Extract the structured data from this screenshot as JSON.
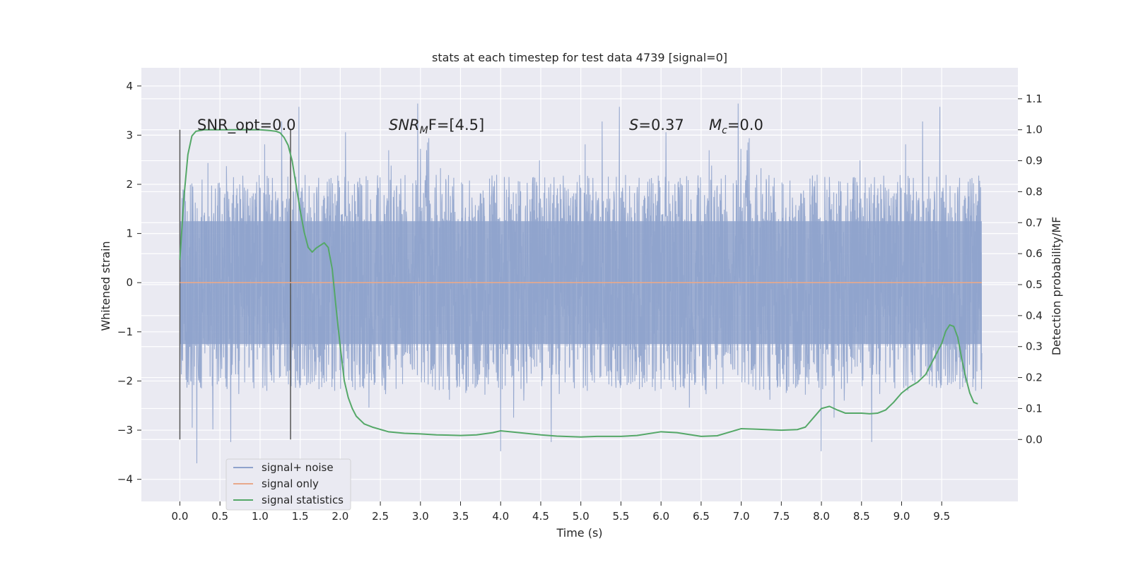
{
  "chart_data": {
    "type": "line",
    "title": "stats at each timestep for test data 4739 [signal=0]",
    "xlabel": "Time (s)",
    "ylabel": "Whitened strain",
    "ylabel_right": "Detection probability/MF",
    "xlim": [
      -0.48,
      10.45
    ],
    "ylim": [
      -4.45,
      4.37
    ],
    "ylim_right": [
      -0.2,
      1.2
    ],
    "xticks": [
      "0.0",
      "0.5",
      "1.0",
      "1.5",
      "2.0",
      "2.5",
      "3.0",
      "3.5",
      "4.0",
      "4.5",
      "5.0",
      "5.5",
      "6.0",
      "6.5",
      "7.0",
      "7.5",
      "8.0",
      "8.5",
      "9.0",
      "9.5"
    ],
    "yticks": [
      "−4",
      "−3",
      "−2",
      "−1",
      "0",
      "1",
      "2",
      "3",
      "4"
    ],
    "yticks_right": [
      "0.0",
      "0.1",
      "0.2",
      "0.3",
      "0.4",
      "0.5",
      "0.6",
      "0.7",
      "0.8",
      "0.9",
      "1.0",
      "1.1"
    ],
    "grid": true,
    "legend_position": "lower-left",
    "annotations": {
      "snr_opt": "SNR_opt=0.0",
      "snr_mf_italic": "SNR",
      "snr_mf_sub": "M",
      "snr_mf_rest": "F=[4.5]",
      "s_italic": "S",
      "s_rest": "=0.37",
      "mc_italic": "M",
      "mc_sub": "c",
      "mc_rest": "=0.0"
    },
    "vertical_markers_x": [
      0.0,
      1.38
    ],
    "series": [
      {
        "name": "signal+ noise",
        "color": "#8fa3cc",
        "axis": "left",
        "noise": {
          "t_start": 0.0,
          "t_end": 10.0,
          "core_amplitude": 1.25,
          "typical_peak": 2.2,
          "max_peak": 3.95,
          "min_peak": -3.8
        }
      },
      {
        "name": "signal only",
        "color": "#e8a98b",
        "axis": "left",
        "x": [
          0.0,
          10.0
        ],
        "y": [
          0.0,
          0.0
        ]
      },
      {
        "name": "signal statistics",
        "color": "#55a868",
        "axis": "right",
        "x": [
          0.0,
          0.05,
          0.1,
          0.15,
          0.2,
          0.3,
          0.5,
          0.8,
          1.0,
          1.1,
          1.2,
          1.25,
          1.3,
          1.35,
          1.4,
          1.45,
          1.5,
          1.55,
          1.6,
          1.65,
          1.7,
          1.8,
          1.85,
          1.9,
          1.95,
          2.0,
          2.05,
          2.1,
          2.15,
          2.2,
          2.3,
          2.4,
          2.6,
          2.8,
          3.0,
          3.2,
          3.5,
          3.7,
          3.9,
          4.0,
          4.2,
          4.5,
          4.7,
          5.0,
          5.2,
          5.5,
          5.7,
          6.0,
          6.2,
          6.5,
          6.7,
          7.0,
          7.2,
          7.5,
          7.7,
          7.8,
          7.9,
          8.0,
          8.1,
          8.2,
          8.3,
          8.4,
          8.5,
          8.6,
          8.7,
          8.8,
          8.9,
          9.0,
          9.1,
          9.2,
          9.3,
          9.4,
          9.5,
          9.55,
          9.6,
          9.65,
          9.7,
          9.75,
          9.8,
          9.85,
          9.9,
          9.95
        ],
        "y": [
          0.58,
          0.78,
          0.92,
          0.98,
          0.995,
          1.0,
          1.0,
          1.0,
          1.0,
          0.998,
          0.995,
          0.99,
          0.975,
          0.95,
          0.9,
          0.82,
          0.74,
          0.67,
          0.62,
          0.605,
          0.618,
          0.635,
          0.62,
          0.55,
          0.42,
          0.3,
          0.19,
          0.135,
          0.1,
          0.075,
          0.05,
          0.04,
          0.025,
          0.02,
          0.018,
          0.015,
          0.013,
          0.015,
          0.022,
          0.028,
          0.023,
          0.015,
          0.011,
          0.008,
          0.01,
          0.01,
          0.013,
          0.025,
          0.022,
          0.01,
          0.012,
          0.035,
          0.033,
          0.03,
          0.032,
          0.04,
          0.07,
          0.1,
          0.107,
          0.095,
          0.085,
          0.085,
          0.085,
          0.083,
          0.085,
          0.095,
          0.12,
          0.15,
          0.17,
          0.185,
          0.21,
          0.26,
          0.31,
          0.35,
          0.37,
          0.365,
          0.33,
          0.26,
          0.2,
          0.15,
          0.12,
          0.115
        ]
      }
    ]
  }
}
